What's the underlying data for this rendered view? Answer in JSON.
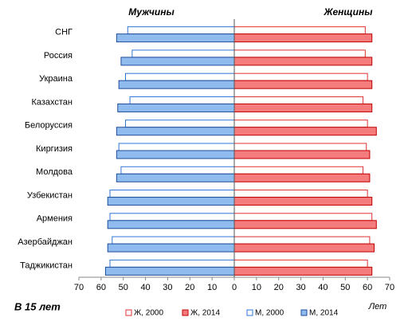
{
  "chart_data": {
    "type": "butterfly",
    "title": "В 15 лет",
    "left_title": "Мужчины",
    "right_title": "Женщины",
    "x_label": "Лет",
    "categories": [
      "СНГ",
      "Россия",
      "Украина",
      "Казахстан",
      "Белоруссия",
      "Киргизия",
      "Молдова",
      "Узбекистан",
      "Армения",
      "Азербайджан",
      "Таджикистан"
    ],
    "series": [
      {
        "name": "Ж, 2000",
        "color": "#e03030",
        "fill": "#ffffff",
        "values": [
          59,
          59,
          60,
          58,
          60,
          59.5,
          58,
          60,
          62,
          61,
          60
        ]
      },
      {
        "name": "Ж, 2014",
        "color": "#c00000",
        "fill": "#f47c7c",
        "values": [
          62,
          62,
          62,
          62,
          64,
          61,
          61,
          62,
          64,
          63,
          62
        ]
      },
      {
        "name": "М, 2000",
        "color": "#2e75d6",
        "fill": "#ffffff",
        "values": [
          -48,
          -46,
          -49,
          -47,
          -49,
          -52,
          -51,
          -56,
          -56,
          -55,
          -56
        ]
      },
      {
        "name": "М, 2014",
        "color": "#1f4e99",
        "fill": "#8fbbee",
        "values": [
          -53,
          -51,
          -52,
          -52.5,
          -53,
          -53,
          -53,
          -57,
          -57,
          -57,
          -58
        ]
      }
    ],
    "xlim": [
      -70,
      70
    ],
    "xticks": [
      {
        "value": -70,
        "label": "70"
      },
      {
        "value": -60,
        "label": "60"
      },
      {
        "value": -50,
        "label": "50"
      },
      {
        "value": -40,
        "label": "40"
      },
      {
        "value": -30,
        "label": "30"
      },
      {
        "value": -20,
        "label": "20"
      },
      {
        "value": -10,
        "label": "10"
      },
      0,
      10,
      20,
      30,
      40,
      50,
      60,
      70
    ]
  }
}
